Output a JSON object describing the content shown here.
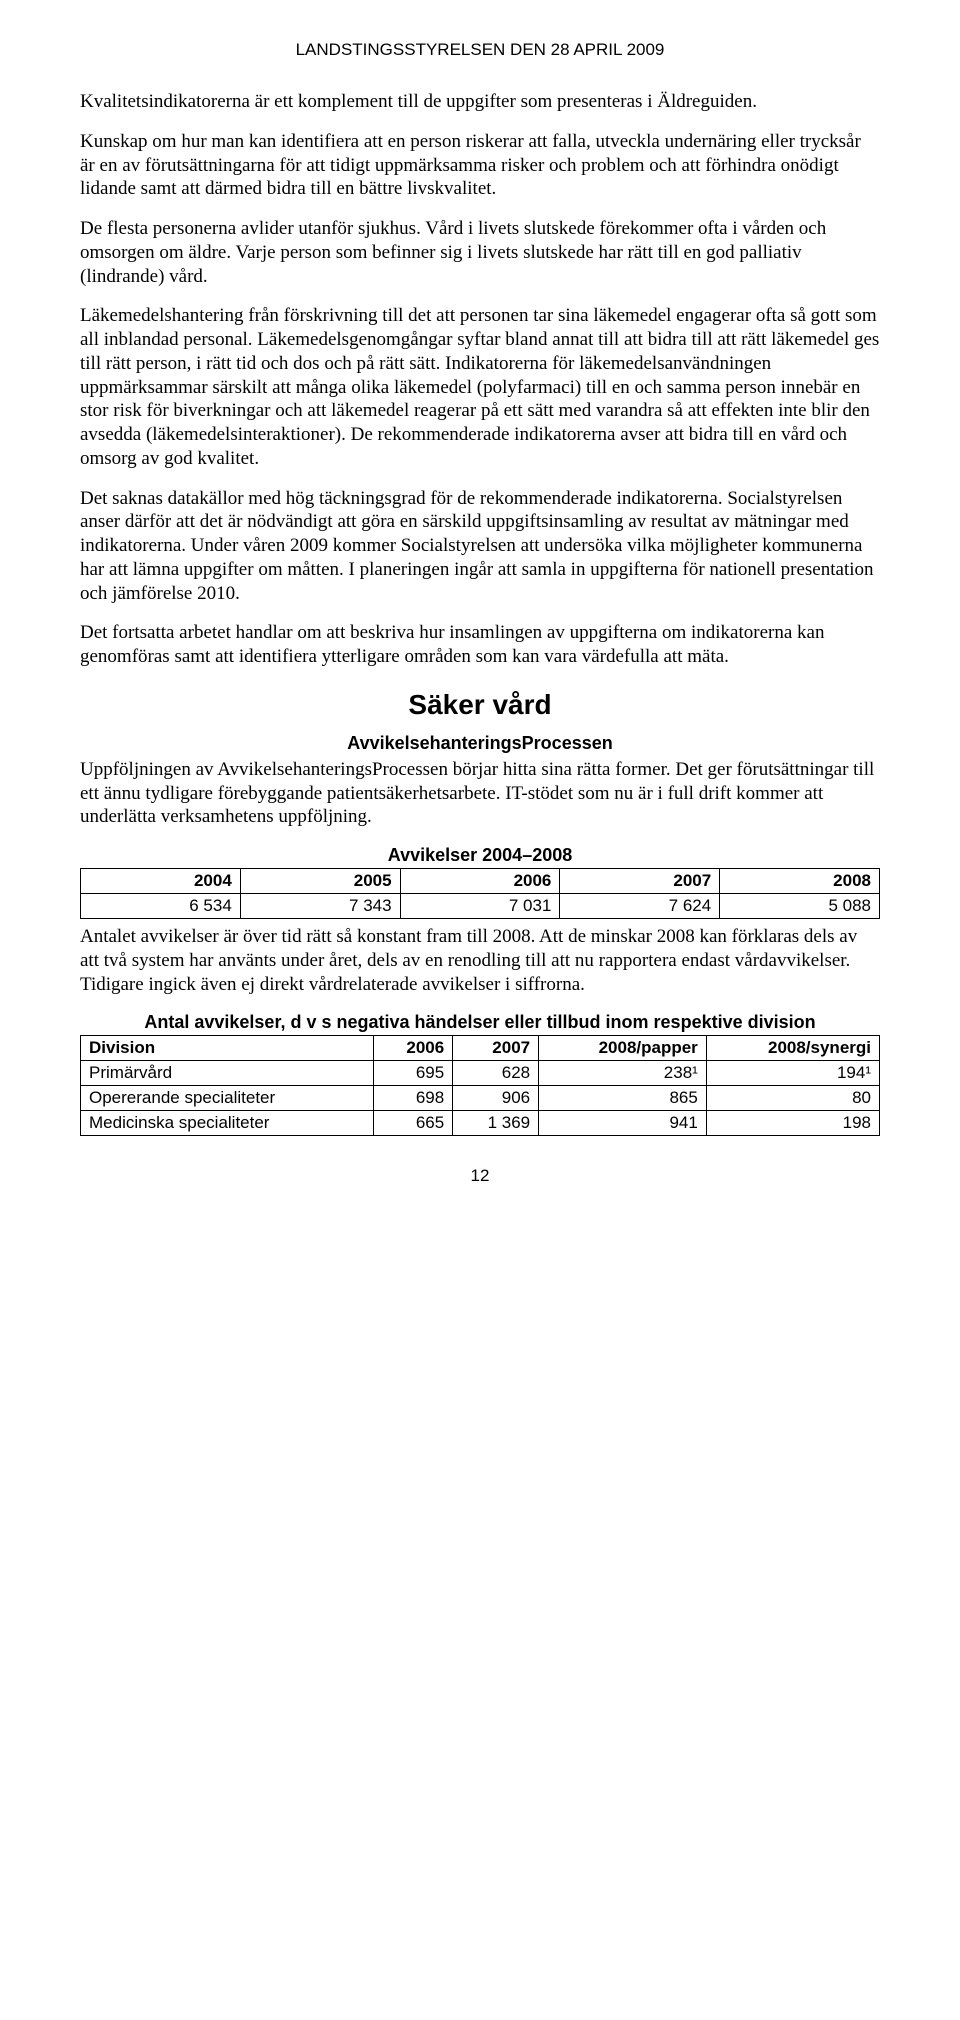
{
  "header": "LANDSTINGSSTYRELSEN DEN 28 APRIL 2009",
  "paragraphs": {
    "p1": "Kvalitetsindikatorerna är ett komplement till de uppgifter som presenteras i Äldreguiden.",
    "p2": "Kunskap om hur man kan identifiera att en person riskerar att falla, utveckla undernäring eller trycksår är en av förutsättningarna för att tidigt uppmärksamma risker och problem och att förhindra onödigt lidande samt att därmed bidra till en bättre livskvalitet.",
    "p3": "De flesta personerna avlider utanför sjukhus. Vård i livets slutskede förekommer ofta i vården och omsorgen om äldre. Varje person som befinner sig i livets slutskede har rätt till en god palliativ (lindrande) vård.",
    "p4": "Läkemedelshantering från förskrivning till det att personen tar sina läkemedel engagerar ofta så gott som all inblandad personal. Läkemedelsgenomgångar syftar bland annat till att bidra till att rätt läkemedel ges till rätt person, i rätt tid och dos och på rätt sätt. Indikatorerna för läkemedelsanvändningen uppmärksammar särskilt att många olika läkemedel (polyfarmaci) till en och samma person innebär en stor risk för biverkningar och att läkemedel reagerar på ett sätt med varandra så att effekten inte blir den avsedda (läkemedelsinteraktioner). De rekommenderade indikatorerna avser att bidra till en vård och omsorg av god kvalitet.",
    "p5": "Det saknas datakällor med hög täckningsgrad för de rekommenderade indikatorerna. Socialstyrelsen  anser därför att det är nödvändigt att göra en särskild uppgiftsinsamling av resultat av mätningar med indikatorerna. Under våren 2009 kommer Socialstyrelsen att undersöka vilka möjligheter kommunerna har att lämna uppgifter om måtten. I planeringen ingår att samla in uppgifterna för nationell presentation och jämförelse 2010.",
    "p6": "Det fortsatta arbetet handlar om att beskriva hur insamlingen av uppgifterna om indikatorerna kan genomföras samt att identifiera ytterligare områden som kan vara värdefulla att mäta.",
    "p7": "Uppföljningen av AvvikelsehanteringsProcessen börjar hitta sina rätta former. Det ger förutsättningar till ett ännu tydligare förebyggande patientsäkerhetsarbete. IT-stödet som nu är i full drift kommer att underlätta verksamhetens uppföljning.",
    "p8": "Antalet avvikelser är över tid rätt så konstant fram till 2008. Att de minskar 2008 kan förklaras dels av att två system har använts under året, dels av en renodling till att nu rapportera endast vårdavvikelser. Tidigare ingick även ej direkt vårdrelaterade avvikelser i siffrorna."
  },
  "section_title": "Säker vård",
  "subsection_title": "AvvikelsehanteringsProcessen",
  "table1": {
    "title": "Avvikelser 2004–2008",
    "headers": [
      "2004",
      "2005",
      "2006",
      "2007",
      "2008"
    ],
    "row": [
      "6 534",
      "7 343",
      "7 031",
      "7 624",
      "5 088"
    ]
  },
  "table2": {
    "title": "Antal avvikelser, d v s negativa händelser eller tillbud inom respektive division",
    "headers": [
      "Division",
      "2006",
      "2007",
      "2008/papper",
      "2008/synergi"
    ],
    "rows": [
      [
        "Primärvård",
        "695",
        "628",
        "238¹",
        "194¹"
      ],
      [
        "Opererande specialiteter",
        "698",
        "906",
        "865",
        "80"
      ],
      [
        "Medicinska specialiteter",
        "665",
        "1 369",
        "941",
        "198"
      ]
    ]
  },
  "page_number": "12"
}
